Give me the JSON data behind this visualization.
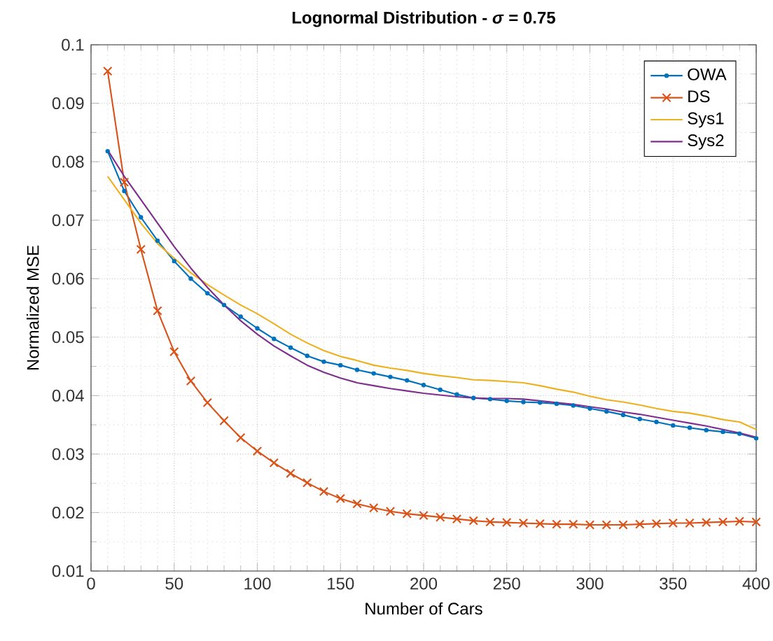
{
  "chart_data": {
    "type": "line",
    "title": "Lognormal Distribution - *σ* = 0.75",
    "xlabel": "Number of Cars",
    "ylabel": "Normalized MSE",
    "x": [
      10,
      20,
      30,
      40,
      50,
      60,
      70,
      80,
      90,
      100,
      110,
      120,
      130,
      140,
      150,
      160,
      170,
      180,
      190,
      200,
      210,
      220,
      230,
      240,
      250,
      260,
      270,
      280,
      290,
      300,
      310,
      320,
      330,
      340,
      350,
      360,
      370,
      380,
      390,
      400
    ],
    "series": [
      {
        "name": "OWA",
        "color": "#0072bd",
        "marker": "circle",
        "values": [
          0.0818,
          0.075,
          0.0705,
          0.0665,
          0.063,
          0.06,
          0.0575,
          0.0555,
          0.0535,
          0.0515,
          0.0497,
          0.0482,
          0.0468,
          0.0458,
          0.0452,
          0.0444,
          0.0438,
          0.0432,
          0.0426,
          0.0418,
          0.041,
          0.0402,
          0.0396,
          0.0394,
          0.0391,
          0.0389,
          0.0388,
          0.0386,
          0.0383,
          0.0378,
          0.0373,
          0.0367,
          0.036,
          0.0355,
          0.0349,
          0.0345,
          0.0341,
          0.0338,
          0.0335,
          0.0327
        ]
      },
      {
        "name": "DS",
        "color": "#d95319",
        "marker": "cross",
        "values": [
          0.0955,
          0.0765,
          0.065,
          0.0545,
          0.0475,
          0.0425,
          0.0388,
          0.0357,
          0.0328,
          0.0305,
          0.0285,
          0.0267,
          0.0251,
          0.0236,
          0.0224,
          0.0215,
          0.0208,
          0.0202,
          0.0198,
          0.0195,
          0.0192,
          0.0189,
          0.0186,
          0.0184,
          0.0183,
          0.0182,
          0.0181,
          0.018,
          0.018,
          0.0179,
          0.0179,
          0.0179,
          0.018,
          0.0181,
          0.0182,
          0.0182,
          0.0183,
          0.0184,
          0.0185,
          0.0184
        ]
      },
      {
        "name": "Sys1",
        "color": "#edb120",
        "values": [
          0.0775,
          0.0735,
          0.0695,
          0.066,
          0.0635,
          0.061,
          0.059,
          0.0572,
          0.0555,
          0.054,
          0.0523,
          0.0505,
          0.049,
          0.0477,
          0.0467,
          0.046,
          0.0452,
          0.0447,
          0.0443,
          0.0438,
          0.0434,
          0.0431,
          0.0427,
          0.0426,
          0.0424,
          0.0422,
          0.0417,
          0.0411,
          0.0406,
          0.0399,
          0.0393,
          0.0389,
          0.0384,
          0.0378,
          0.0373,
          0.037,
          0.0365,
          0.0359,
          0.0355,
          0.0342
        ]
      },
      {
        "name": "Sys2",
        "color": "#7e2f8e",
        "values": [
          0.082,
          0.0775,
          0.0735,
          0.0695,
          0.0655,
          0.0618,
          0.0585,
          0.0555,
          0.0528,
          0.0505,
          0.0485,
          0.0468,
          0.0452,
          0.044,
          0.043,
          0.0422,
          0.0417,
          0.0412,
          0.0408,
          0.0404,
          0.0401,
          0.0398,
          0.0396,
          0.0395,
          0.0395,
          0.0394,
          0.0391,
          0.0388,
          0.0385,
          0.0381,
          0.0377,
          0.0372,
          0.0368,
          0.0363,
          0.0358,
          0.0353,
          0.0348,
          0.0342,
          0.0336,
          0.0329
        ]
      }
    ],
    "xlim": [
      0,
      400
    ],
    "ylim": [
      0.01,
      0.1
    ],
    "xticks": [
      0,
      50,
      100,
      150,
      200,
      250,
      300,
      350,
      400
    ],
    "yticks": [
      0.01,
      0.02,
      0.03,
      0.04,
      0.05,
      0.06,
      0.07,
      0.08,
      0.09,
      0.1
    ],
    "grid": true,
    "legend": "top right",
    "line_style": "solid"
  }
}
